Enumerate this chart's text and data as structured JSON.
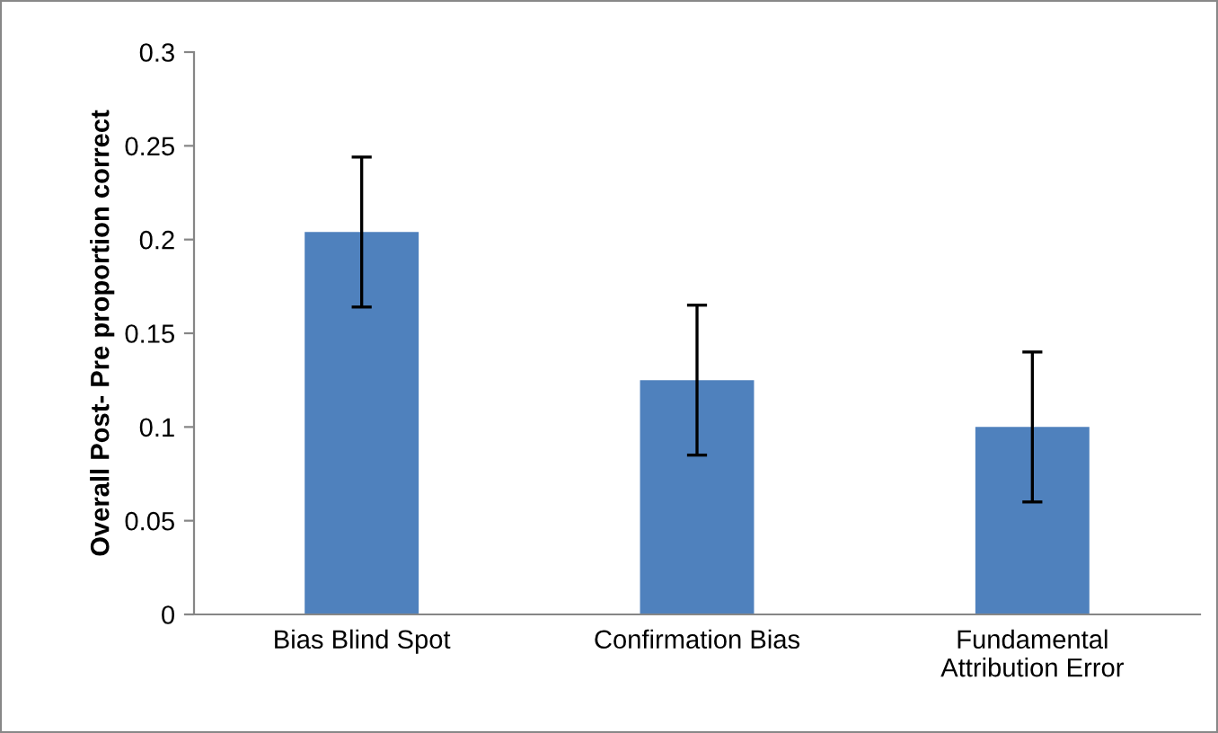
{
  "chart_data": {
    "type": "bar",
    "ylabel": "Overall Post- Pre proportion correct",
    "categories": [
      "Bias Blind Spot",
      "Confirmation Bias",
      "Fundamental\nAttribution Error"
    ],
    "values": [
      0.204,
      0.125,
      0.1
    ],
    "errors": [
      0.04,
      0.04,
      0.04
    ],
    "color": "#4f81bd",
    "ylim": [
      0,
      0.3
    ],
    "yticks": [
      0,
      0.05,
      0.1,
      0.15,
      0.2,
      0.25,
      0.3
    ],
    "grid": false
  }
}
